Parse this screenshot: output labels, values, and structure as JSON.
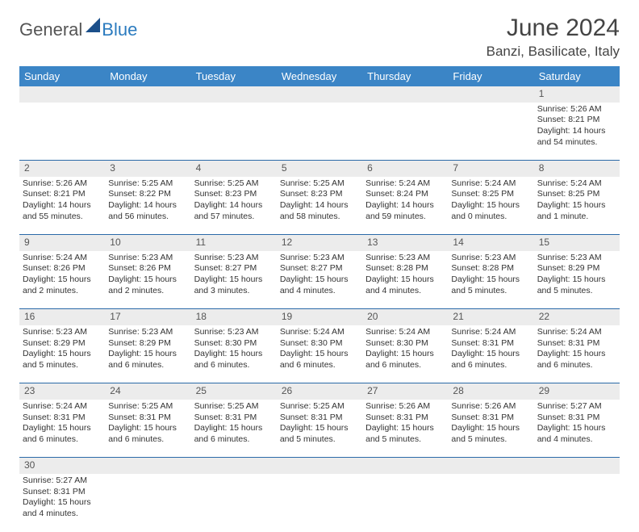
{
  "logo": {
    "part1": "General",
    "part2": "Blue"
  },
  "title": "June 2024",
  "location": "Banzi, Basilicate, Italy",
  "colors": {
    "header_bg": "#3b85c6",
    "header_text": "#ffffff",
    "daynum_bg": "#ececec",
    "row_border": "#2b6aa8",
    "title_color": "#444444",
    "logo_gray": "#555555",
    "logo_blue": "#2b7bbf"
  },
  "weekdays": [
    "Sunday",
    "Monday",
    "Tuesday",
    "Wednesday",
    "Thursday",
    "Friday",
    "Saturday"
  ],
  "weeks": [
    {
      "nums": [
        "",
        "",
        "",
        "",
        "",
        "",
        "1"
      ],
      "cells": [
        null,
        null,
        null,
        null,
        null,
        null,
        {
          "sunrise": "Sunrise: 5:26 AM",
          "sunset": "Sunset: 8:21 PM",
          "daylight": "Daylight: 14 hours and 54 minutes."
        }
      ]
    },
    {
      "nums": [
        "2",
        "3",
        "4",
        "5",
        "6",
        "7",
        "8"
      ],
      "cells": [
        {
          "sunrise": "Sunrise: 5:26 AM",
          "sunset": "Sunset: 8:21 PM",
          "daylight": "Daylight: 14 hours and 55 minutes."
        },
        {
          "sunrise": "Sunrise: 5:25 AM",
          "sunset": "Sunset: 8:22 PM",
          "daylight": "Daylight: 14 hours and 56 minutes."
        },
        {
          "sunrise": "Sunrise: 5:25 AM",
          "sunset": "Sunset: 8:23 PM",
          "daylight": "Daylight: 14 hours and 57 minutes."
        },
        {
          "sunrise": "Sunrise: 5:25 AM",
          "sunset": "Sunset: 8:23 PM",
          "daylight": "Daylight: 14 hours and 58 minutes."
        },
        {
          "sunrise": "Sunrise: 5:24 AM",
          "sunset": "Sunset: 8:24 PM",
          "daylight": "Daylight: 14 hours and 59 minutes."
        },
        {
          "sunrise": "Sunrise: 5:24 AM",
          "sunset": "Sunset: 8:25 PM",
          "daylight": "Daylight: 15 hours and 0 minutes."
        },
        {
          "sunrise": "Sunrise: 5:24 AM",
          "sunset": "Sunset: 8:25 PM",
          "daylight": "Daylight: 15 hours and 1 minute."
        }
      ]
    },
    {
      "nums": [
        "9",
        "10",
        "11",
        "12",
        "13",
        "14",
        "15"
      ],
      "cells": [
        {
          "sunrise": "Sunrise: 5:24 AM",
          "sunset": "Sunset: 8:26 PM",
          "daylight": "Daylight: 15 hours and 2 minutes."
        },
        {
          "sunrise": "Sunrise: 5:23 AM",
          "sunset": "Sunset: 8:26 PM",
          "daylight": "Daylight: 15 hours and 2 minutes."
        },
        {
          "sunrise": "Sunrise: 5:23 AM",
          "sunset": "Sunset: 8:27 PM",
          "daylight": "Daylight: 15 hours and 3 minutes."
        },
        {
          "sunrise": "Sunrise: 5:23 AM",
          "sunset": "Sunset: 8:27 PM",
          "daylight": "Daylight: 15 hours and 4 minutes."
        },
        {
          "sunrise": "Sunrise: 5:23 AM",
          "sunset": "Sunset: 8:28 PM",
          "daylight": "Daylight: 15 hours and 4 minutes."
        },
        {
          "sunrise": "Sunrise: 5:23 AM",
          "sunset": "Sunset: 8:28 PM",
          "daylight": "Daylight: 15 hours and 5 minutes."
        },
        {
          "sunrise": "Sunrise: 5:23 AM",
          "sunset": "Sunset: 8:29 PM",
          "daylight": "Daylight: 15 hours and 5 minutes."
        }
      ]
    },
    {
      "nums": [
        "16",
        "17",
        "18",
        "19",
        "20",
        "21",
        "22"
      ],
      "cells": [
        {
          "sunrise": "Sunrise: 5:23 AM",
          "sunset": "Sunset: 8:29 PM",
          "daylight": "Daylight: 15 hours and 5 minutes."
        },
        {
          "sunrise": "Sunrise: 5:23 AM",
          "sunset": "Sunset: 8:29 PM",
          "daylight": "Daylight: 15 hours and 6 minutes."
        },
        {
          "sunrise": "Sunrise: 5:23 AM",
          "sunset": "Sunset: 8:30 PM",
          "daylight": "Daylight: 15 hours and 6 minutes."
        },
        {
          "sunrise": "Sunrise: 5:24 AM",
          "sunset": "Sunset: 8:30 PM",
          "daylight": "Daylight: 15 hours and 6 minutes."
        },
        {
          "sunrise": "Sunrise: 5:24 AM",
          "sunset": "Sunset: 8:30 PM",
          "daylight": "Daylight: 15 hours and 6 minutes."
        },
        {
          "sunrise": "Sunrise: 5:24 AM",
          "sunset": "Sunset: 8:31 PM",
          "daylight": "Daylight: 15 hours and 6 minutes."
        },
        {
          "sunrise": "Sunrise: 5:24 AM",
          "sunset": "Sunset: 8:31 PM",
          "daylight": "Daylight: 15 hours and 6 minutes."
        }
      ]
    },
    {
      "nums": [
        "23",
        "24",
        "25",
        "26",
        "27",
        "28",
        "29"
      ],
      "cells": [
        {
          "sunrise": "Sunrise: 5:24 AM",
          "sunset": "Sunset: 8:31 PM",
          "daylight": "Daylight: 15 hours and 6 minutes."
        },
        {
          "sunrise": "Sunrise: 5:25 AM",
          "sunset": "Sunset: 8:31 PM",
          "daylight": "Daylight: 15 hours and 6 minutes."
        },
        {
          "sunrise": "Sunrise: 5:25 AM",
          "sunset": "Sunset: 8:31 PM",
          "daylight": "Daylight: 15 hours and 6 minutes."
        },
        {
          "sunrise": "Sunrise: 5:25 AM",
          "sunset": "Sunset: 8:31 PM",
          "daylight": "Daylight: 15 hours and 5 minutes."
        },
        {
          "sunrise": "Sunrise: 5:26 AM",
          "sunset": "Sunset: 8:31 PM",
          "daylight": "Daylight: 15 hours and 5 minutes."
        },
        {
          "sunrise": "Sunrise: 5:26 AM",
          "sunset": "Sunset: 8:31 PM",
          "daylight": "Daylight: 15 hours and 5 minutes."
        },
        {
          "sunrise": "Sunrise: 5:27 AM",
          "sunset": "Sunset: 8:31 PM",
          "daylight": "Daylight: 15 hours and 4 minutes."
        }
      ]
    },
    {
      "nums": [
        "30",
        "",
        "",
        "",
        "",
        "",
        ""
      ],
      "cells": [
        {
          "sunrise": "Sunrise: 5:27 AM",
          "sunset": "Sunset: 8:31 PM",
          "daylight": "Daylight: 15 hours and 4 minutes."
        },
        null,
        null,
        null,
        null,
        null,
        null
      ]
    }
  ]
}
